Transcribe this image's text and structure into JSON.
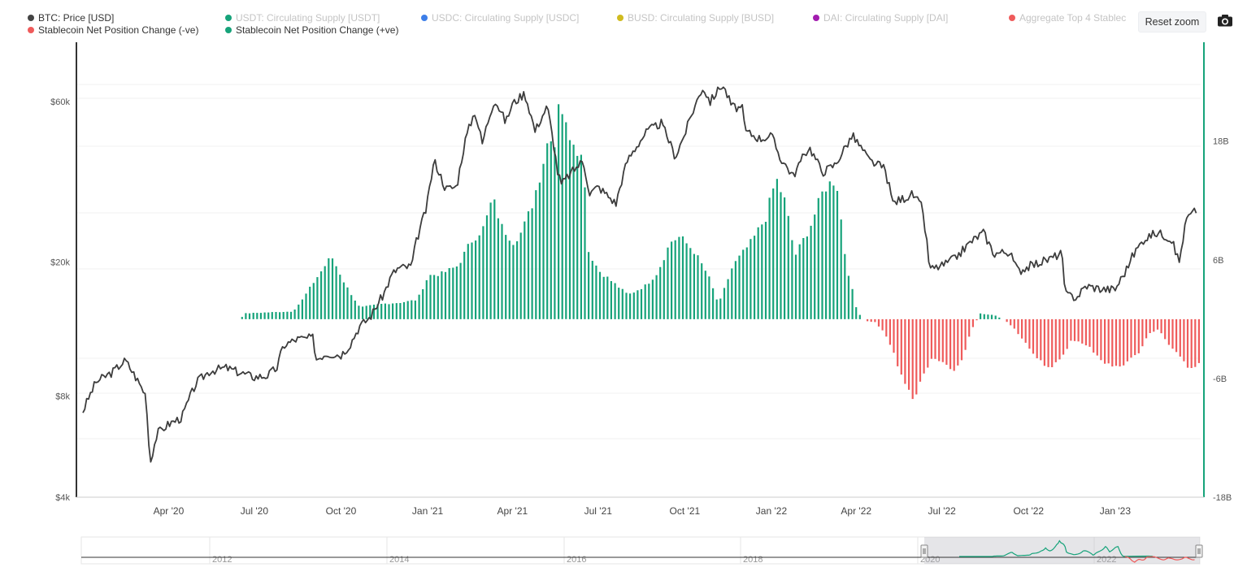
{
  "toolbar": {
    "reset_zoom_label": "Reset zoom",
    "camera_icon": "camera-icon"
  },
  "legend": [
    {
      "label": "BTC: Price [USD]",
      "color": "#444444",
      "hidden": false
    },
    {
      "label": "USDT: Circulating Supply [USDT]",
      "color": "#16a37a",
      "hidden": true
    },
    {
      "label": "USDC: Circulating Supply [USDC]",
      "color": "#3d7ee8",
      "hidden": true
    },
    {
      "label": "BUSD: Circulating Supply [BUSD]",
      "color": "#d0bb1f",
      "hidden": true
    },
    {
      "label": "DAI: Circulating Supply [DAI]",
      "color": "#a21caf",
      "hidden": true
    },
    {
      "label": "Aggregate Top 4 Stablec",
      "color": "#ef5b5b",
      "hidden": true
    },
    {
      "label": "Stablecoin Net Position Change (-ve)",
      "color": "#ef5b5b",
      "hidden": false
    },
    {
      "label": "Stablecoin Net Position Change (+ve)",
      "color": "#16a37a",
      "hidden": false
    }
  ],
  "chart_data": {
    "type": "line+bar",
    "x_ticks": [
      "Apr '20",
      "Jul '20",
      "Oct '20",
      "Jan '21",
      "Apr '21",
      "Jul '21",
      "Oct '21",
      "Jan '22",
      "Apr '22",
      "Jul '22",
      "Oct '22",
      "Jan '23"
    ],
    "x_tick_dates": [
      "2020-04-01",
      "2020-07-01",
      "2020-10-01",
      "2021-01-01",
      "2021-04-01",
      "2021-07-01",
      "2021-10-01",
      "2022-01-01",
      "2022-04-01",
      "2022-07-01",
      "2022-10-01",
      "2023-01-01"
    ],
    "x_range": [
      "2020-01-01",
      "2023-03-31"
    ],
    "y_left": {
      "ticks": [
        "$4k",
        "$8k",
        "$20k",
        "$60k"
      ],
      "tick_values": [
        4000,
        8000,
        20000,
        60000
      ],
      "scale": "log",
      "range": [
        4000,
        90000
      ]
    },
    "y_right": {
      "ticks": [
        "18B",
        "6B",
        "-6B",
        "-18B"
      ],
      "tick_values": [
        18,
        6,
        -6,
        -18
      ],
      "range": [
        -18,
        28
      ],
      "unit": "B"
    },
    "btc_price": [
      [
        "2020-01-01",
        7200
      ],
      [
        "2020-01-15",
        8800
      ],
      [
        "2020-02-01",
        9400
      ],
      [
        "2020-02-15",
        10200
      ],
      [
        "2020-03-01",
        8700
      ],
      [
        "2020-03-08",
        8000
      ],
      [
        "2020-03-12",
        5000
      ],
      [
        "2020-03-20",
        6200
      ],
      [
        "2020-04-01",
        6600
      ],
      [
        "2020-04-15",
        6900
      ],
      [
        "2020-05-01",
        8800
      ],
      [
        "2020-05-15",
        9500
      ],
      [
        "2020-06-01",
        9700
      ],
      [
        "2020-06-15",
        9400
      ],
      [
        "2020-07-01",
        9100
      ],
      [
        "2020-07-15",
        9200
      ],
      [
        "2020-07-25",
        9700
      ],
      [
        "2020-08-01",
        11300
      ],
      [
        "2020-08-15",
        11800
      ],
      [
        "2020-09-01",
        11900
      ],
      [
        "2020-09-05",
        10300
      ],
      [
        "2020-09-15",
        10700
      ],
      [
        "2020-10-01",
        10600
      ],
      [
        "2020-10-10",
        11300
      ],
      [
        "2020-10-21",
        12900
      ],
      [
        "2020-11-01",
        13700
      ],
      [
        "2020-11-15",
        16000
      ],
      [
        "2020-11-25",
        18500
      ],
      [
        "2020-12-01",
        19200
      ],
      [
        "2020-12-15",
        19400
      ],
      [
        "2020-12-20",
        23000
      ],
      [
        "2020-12-31",
        29000
      ],
      [
        "2021-01-08",
        40000
      ],
      [
        "2021-01-20",
        33000
      ],
      [
        "2021-02-01",
        33500
      ],
      [
        "2021-02-10",
        46000
      ],
      [
        "2021-02-20",
        56000
      ],
      [
        "2021-02-28",
        45000
      ],
      [
        "2021-03-13",
        61000
      ],
      [
        "2021-03-25",
        52000
      ],
      [
        "2021-04-01",
        59000
      ],
      [
        "2021-04-14",
        63500
      ],
      [
        "2021-04-25",
        49000
      ],
      [
        "2021-05-08",
        58000
      ],
      [
        "2021-05-12",
        50000
      ],
      [
        "2021-05-19",
        37000
      ],
      [
        "2021-05-23",
        34000
      ],
      [
        "2021-06-01",
        36500
      ],
      [
        "2021-06-15",
        40000
      ],
      [
        "2021-06-22",
        32000
      ],
      [
        "2021-07-01",
        33500
      ],
      [
        "2021-07-20",
        29800
      ],
      [
        "2021-08-01",
        40000
      ],
      [
        "2021-08-22",
        49000
      ],
      [
        "2021-09-06",
        51700
      ],
      [
        "2021-09-21",
        41000
      ],
      [
        "2021-10-01",
        48000
      ],
      [
        "2021-10-20",
        66000
      ],
      [
        "2021-10-28",
        60000
      ],
      [
        "2021-11-10",
        67500
      ],
      [
        "2021-11-20",
        58000
      ],
      [
        "2021-12-01",
        57000
      ],
      [
        "2021-12-04",
        49000
      ],
      [
        "2021-12-20",
        46500
      ],
      [
        "2022-01-01",
        47500
      ],
      [
        "2022-01-10",
        41000
      ],
      [
        "2022-01-24",
        36000
      ],
      [
        "2022-02-10",
        44000
      ],
      [
        "2022-02-24",
        37000
      ],
      [
        "2022-03-10",
        39000
      ],
      [
        "2022-03-28",
        47500
      ],
      [
        "2022-04-15",
        40000
      ],
      [
        "2022-05-01",
        38000
      ],
      [
        "2022-05-10",
        30000
      ],
      [
        "2022-05-31",
        31800
      ],
      [
        "2022-06-10",
        29000
      ],
      [
        "2022-06-18",
        19000
      ],
      [
        "2022-07-01",
        19500
      ],
      [
        "2022-07-15",
        20500
      ],
      [
        "2022-08-01",
        23000
      ],
      [
        "2022-08-14",
        24500
      ],
      [
        "2022-08-25",
        21200
      ],
      [
        "2022-09-10",
        21500
      ],
      [
        "2022-09-20",
        18800
      ],
      [
        "2022-10-01",
        19400
      ],
      [
        "2022-10-25",
        20500
      ],
      [
        "2022-11-05",
        21300
      ],
      [
        "2022-11-09",
        16000
      ],
      [
        "2022-11-21",
        15700
      ],
      [
        "2022-12-01",
        17000
      ],
      [
        "2022-12-20",
        16600
      ],
      [
        "2023-01-01",
        16600
      ],
      [
        "2023-01-12",
        18800
      ],
      [
        "2023-01-20",
        21000
      ],
      [
        "2023-02-01",
        23500
      ],
      [
        "2023-02-15",
        24500
      ],
      [
        "2023-03-01",
        23500
      ],
      [
        "2023-03-10",
        20000
      ],
      [
        "2023-03-18",
        27000
      ],
      [
        "2023-03-28",
        28500
      ]
    ],
    "net_position_change_B": [
      [
        "2020-01-01",
        0
      ],
      [
        "2020-06-15",
        0
      ],
      [
        "2020-06-20",
        0.6
      ],
      [
        "2020-08-10",
        0.8
      ],
      [
        "2020-08-20",
        2.0
      ],
      [
        "2020-09-01",
        3.8
      ],
      [
        "2020-09-20",
        6.5
      ],
      [
        "2020-10-05",
        3.5
      ],
      [
        "2020-10-20",
        1.2
      ],
      [
        "2020-11-01",
        1.4
      ],
      [
        "2020-11-15",
        1.6
      ],
      [
        "2020-12-01",
        1.7
      ],
      [
        "2020-12-20",
        2.0
      ],
      [
        "2021-01-01",
        4.5
      ],
      [
        "2021-01-15",
        4.7
      ],
      [
        "2021-02-01",
        5.5
      ],
      [
        "2021-02-15",
        8.0
      ],
      [
        "2021-03-01",
        9.5
      ],
      [
        "2021-03-10",
        12.5
      ],
      [
        "2021-03-20",
        9.5
      ],
      [
        "2021-04-01",
        8.0
      ],
      [
        "2021-04-10",
        9.0
      ],
      [
        "2021-04-20",
        11.5
      ],
      [
        "2021-05-01",
        15.5
      ],
      [
        "2021-05-10",
        19.5
      ],
      [
        "2021-05-15",
        18.0
      ],
      [
        "2021-05-20",
        24.0
      ],
      [
        "2021-05-25",
        20.0
      ],
      [
        "2021-06-05",
        18.5
      ],
      [
        "2021-06-15",
        16.0
      ],
      [
        "2021-06-20",
        7.0
      ],
      [
        "2021-07-01",
        5.0
      ],
      [
        "2021-08-01",
        2.5
      ],
      [
        "2021-08-20",
        3.5
      ],
      [
        "2021-09-01",
        4.8
      ],
      [
        "2021-09-15",
        8.0
      ],
      [
        "2021-09-25",
        8.5
      ],
      [
        "2021-10-10",
        7.0
      ],
      [
        "2021-10-25",
        4.5
      ],
      [
        "2021-11-05",
        1.5
      ],
      [
        "2021-11-20",
        5.5
      ],
      [
        "2021-12-10",
        8.0
      ],
      [
        "2021-12-25",
        10.5
      ],
      [
        "2022-01-05",
        14.5
      ],
      [
        "2022-01-15",
        12.0
      ],
      [
        "2022-01-25",
        6.5
      ],
      [
        "2022-02-10",
        9.5
      ],
      [
        "2022-02-25",
        13.5
      ],
      [
        "2022-03-10",
        14.5
      ],
      [
        "2022-03-20",
        6.0
      ],
      [
        "2022-04-01",
        0.8
      ],
      [
        "2022-04-10",
        -0.2
      ],
      [
        "2022-04-20",
        -0.3
      ],
      [
        "2022-05-01",
        -1.5
      ],
      [
        "2022-05-10",
        -3.5
      ],
      [
        "2022-05-20",
        -6.5
      ],
      [
        "2022-06-01",
        -8.2
      ],
      [
        "2022-06-10",
        -6.0
      ],
      [
        "2022-06-20",
        -4.0
      ],
      [
        "2022-07-01",
        -4.5
      ],
      [
        "2022-07-10",
        -5.5
      ],
      [
        "2022-07-20",
        -4.5
      ],
      [
        "2022-08-01",
        -1.0
      ],
      [
        "2022-08-10",
        0.6
      ],
      [
        "2022-08-25",
        0.4
      ],
      [
        "2022-09-05",
        -0.1
      ],
      [
        "2022-09-15",
        -1.0
      ],
      [
        "2022-10-01",
        -3.0
      ],
      [
        "2022-10-15",
        -4.5
      ],
      [
        "2022-10-25",
        -5.0
      ],
      [
        "2022-11-05",
        -4.0
      ],
      [
        "2022-11-15",
        -2.0
      ],
      [
        "2022-11-25",
        -2.5
      ],
      [
        "2022-12-05",
        -3.0
      ],
      [
        "2022-12-20",
        -4.5
      ],
      [
        "2023-01-01",
        -5.0
      ],
      [
        "2023-01-10",
        -4.5
      ],
      [
        "2023-01-25",
        -3.5
      ],
      [
        "2023-02-05",
        -1.5
      ],
      [
        "2023-02-15",
        -1.0
      ],
      [
        "2023-02-25",
        -2.5
      ],
      [
        "2023-03-10",
        -4.0
      ],
      [
        "2023-03-20",
        -5.0
      ],
      [
        "2023-03-31",
        -4.5
      ]
    ],
    "navigator": {
      "year_labels": [
        "2012",
        "2014",
        "2016",
        "2018",
        "2020",
        "2022"
      ]
    }
  }
}
